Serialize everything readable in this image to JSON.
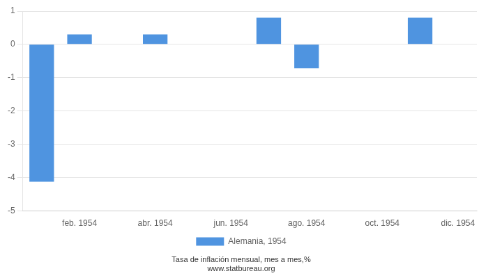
{
  "chart_data": {
    "type": "bar",
    "categories": [
      null,
      "feb. 1954",
      null,
      "abr. 1954",
      null,
      "jun. 1954",
      null,
      "ago. 1954",
      null,
      "oct. 1954",
      null,
      "dic. 1954"
    ],
    "series": [
      {
        "name": "Alemania, 1954",
        "color": "#4f94e0",
        "values": [
          -4.13,
          0.3,
          0.0,
          0.3,
          0.0,
          0.0,
          0.8,
          -0.72,
          0.0,
          0.0,
          0.8,
          0.0
        ]
      }
    ],
    "ylim": [
      -5,
      1
    ],
    "yticks": [
      -5,
      -4,
      -3,
      -2,
      -1,
      0,
      1
    ],
    "grid": true,
    "legend": "bottom",
    "annotations": [
      "Tasa de inflación mensual, mes a mes,%",
      "www.statbureau.org"
    ]
  }
}
